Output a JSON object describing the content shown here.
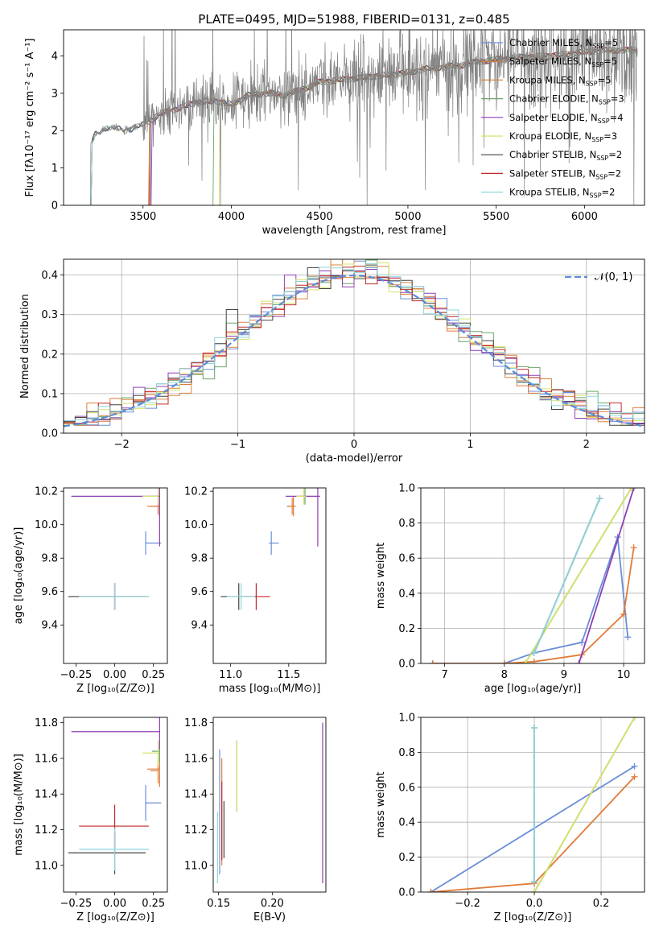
{
  "figure_title": "PLATE=0495, MJD=51988, FIBERID=0131, z=0.485",
  "models": [
    {
      "name": "Chabrier MILES",
      "nssp": "5",
      "color": "#6a8fd8"
    },
    {
      "name": "Salpeter MILES",
      "nssp": "5",
      "color": "#e07b39"
    },
    {
      "name": "Kroupa MILES",
      "nssp": "5",
      "color": "#d9843e"
    },
    {
      "name": "Chabrier ELODIE",
      "nssp": "3",
      "color": "#6da36a"
    },
    {
      "name": "Salpeter ELODIE",
      "nssp": "4",
      "color": "#8e3fb5"
    },
    {
      "name": "Kroupa ELODIE",
      "nssp": "3",
      "color": "#d7e36b"
    },
    {
      "name": "Chabrier STELIB",
      "nssp": "2",
      "color": "#444444"
    },
    {
      "name": "Salpeter STELIB",
      "nssp": "2",
      "color": "#c0282a"
    },
    {
      "name": "Kroupa STELIB",
      "nssp": "2",
      "color": "#8fd6dc"
    }
  ],
  "chart_data": [
    {
      "id": "spectrum",
      "type": "line",
      "title": "PLATE=0495, MJD=51988, FIBERID=0131, z=0.485",
      "xlabel": "wavelength [Angstrom, rest frame]",
      "ylabel": "Flux [fλ10⁻¹⁷ erg cm⁻² s⁻¹ A⁻¹]",
      "xlim": [
        3050,
        6340
      ],
      "ylim": [
        0,
        4.7
      ],
      "xticks": [
        "3500",
        "4000",
        "4500",
        "5000",
        "5500",
        "6000"
      ],
      "yticks": [
        "0",
        "1",
        "2",
        "3",
        "4"
      ],
      "data_start": 3200,
      "continuum": [
        [
          3200,
          1.6
        ],
        [
          3230,
          1.9
        ],
        [
          3300,
          2.1
        ],
        [
          3400,
          2.0
        ],
        [
          3500,
          2.15
        ],
        [
          3600,
          2.45
        ],
        [
          3700,
          2.6
        ],
        [
          3800,
          2.75
        ],
        [
          3900,
          2.8
        ],
        [
          4000,
          2.7
        ],
        [
          4100,
          2.95
        ],
        [
          4200,
          3.0
        ],
        [
          4300,
          2.95
        ],
        [
          4400,
          3.1
        ],
        [
          4500,
          3.3
        ],
        [
          4600,
          3.35
        ],
        [
          4700,
          3.4
        ],
        [
          4800,
          3.45
        ],
        [
          4900,
          3.5
        ],
        [
          5000,
          3.55
        ],
        [
          5100,
          3.65
        ],
        [
          5200,
          3.7
        ],
        [
          5300,
          3.75
        ],
        [
          5400,
          3.85
        ],
        [
          5500,
          3.9
        ],
        [
          5600,
          3.95
        ],
        [
          5700,
          3.98
        ],
        [
          5800,
          4.0
        ],
        [
          5900,
          4.05
        ],
        [
          6000,
          4.1
        ],
        [
          6100,
          4.15
        ],
        [
          6200,
          4.15
        ]
      ],
      "noise_start": 3500,
      "series_start": [
        3200,
        3525,
        3200,
        3890,
        3540,
        3925,
        3200,
        3530,
        3200
      ]
    },
    {
      "id": "residuals",
      "type": "histogram",
      "xlabel": "(data-model)/error",
      "ylabel": "Normed distribution",
      "xlim": [
        -2.5,
        2.5
      ],
      "ylim": [
        0,
        0.44
      ],
      "xticks": [
        "−2",
        "−1",
        "0",
        "1",
        "2"
      ],
      "yticks": [
        "0.0",
        "0.1",
        "0.2",
        "0.3",
        "0.4"
      ],
      "legend": "𝒩(0, 1)",
      "gaussian": {
        "mu": 0,
        "sigma": 1
      }
    },
    {
      "id": "age_vs_Z",
      "type": "scatter",
      "xlabel": "Z [log₁₀(Z/Z⊙)]",
      "ylabel": "age  [log₁₀(age/yr)]",
      "xlim": [
        -0.33,
        0.34
      ],
      "ylim": [
        9.17,
        10.22
      ],
      "xticks": [
        "−0.25",
        "0.00",
        "0.25"
      ],
      "yticks": [
        "9.4",
        "9.6",
        "9.8",
        "10.0",
        "10.2"
      ]
    },
    {
      "id": "age_vs_mass",
      "type": "scatter",
      "xlabel": "mass [log₁₀(M/M⊙)]",
      "ylabel": "",
      "xlim": [
        10.85,
        11.82
      ],
      "ylim": [
        9.17,
        10.22
      ],
      "xticks": [
        "11.0",
        "11.5"
      ],
      "yticks": [
        "9.4",
        "9.6",
        "9.8",
        "10.0",
        "10.2"
      ]
    },
    {
      "id": "weight_vs_age",
      "type": "line",
      "xlabel": "age  [log₁₀(age/yr)]",
      "ylabel": "mass weight",
      "xlim": [
        6.6,
        10.35
      ],
      "ylim": [
        0,
        1.0
      ],
      "xticks": [
        "7",
        "8",
        "9",
        "10"
      ],
      "yticks": [
        "0.0",
        "0.2",
        "0.4",
        "0.6",
        "0.8",
        "1.0"
      ]
    },
    {
      "id": "mass_vs_Z",
      "type": "scatter",
      "xlabel": "Z [log₁₀(Z/Z⊙)]",
      "ylabel": "mass [log₁₀(M/M⊙)]",
      "xlim": [
        -0.33,
        0.34
      ],
      "ylim": [
        10.85,
        11.83
      ],
      "xticks": [
        "−0.25",
        "0.00",
        "0.25"
      ],
      "yticks": [
        "11.0",
        "11.2",
        "11.4",
        "11.6",
        "11.8"
      ]
    },
    {
      "id": "mass_vs_ebv",
      "type": "scatter",
      "xlabel": "E(B-V)",
      "ylabel": "",
      "xlim": [
        0.145,
        0.25
      ],
      "ylim": [
        10.85,
        11.83
      ],
      "xticks": [
        "0.15",
        "0.20"
      ],
      "yticks": [
        "11.0",
        "11.2",
        "11.4",
        "11.6",
        "11.8"
      ]
    },
    {
      "id": "weight_vs_Z",
      "type": "line",
      "xlabel": "Z [log₁₀(Z/Z⊙)]",
      "ylabel": "mass weight",
      "xlim": [
        -0.34,
        0.33
      ],
      "ylim": [
        0,
        1.0
      ],
      "xticks": [
        "−0.2",
        "0.0",
        "0.2"
      ],
      "yticks": [
        "0.0",
        "0.2",
        "0.4",
        "0.6",
        "0.8",
        "1.0"
      ]
    }
  ],
  "points": {
    "age_Z_mass": [
      {
        "model": 0,
        "Z": 0.2,
        "age": 9.89,
        "mass": 11.35,
        "Zerr": [
          0.0,
          0.1
        ],
        "ageerr": 0.07,
        "masserr": 0.1
      },
      {
        "model": 1,
        "Z": 0.29,
        "age": 10.11,
        "mass": 11.54,
        "Zerr": [
          0.08,
          0.0
        ],
        "ageerr": 0.06,
        "masserr": 0.1
      },
      {
        "model": 2,
        "Z": 0.28,
        "age": 10.11,
        "mass": 11.53,
        "Zerr": [
          0.05,
          0.0
        ],
        "ageerr": 0.05,
        "masserr": 0.07
      },
      {
        "model": 3,
        "Z": 0.29,
        "age": 10.17,
        "mass": 11.64,
        "Zerr": [
          0.05,
          0.0
        ],
        "ageerr": 0.05,
        "masserr": 0.06
      },
      {
        "model": 4,
        "Z": 0.29,
        "age": 10.17,
        "mass": 11.75,
        "Zerr": [
          0.57,
          0.0
        ],
        "ageerr": 0.3,
        "masserr": 0.1
      },
      {
        "model": 5,
        "Z": 0.28,
        "age": 10.17,
        "mass": 11.63,
        "Zerr": [
          0.1,
          0.0
        ],
        "ageerr": 0.05,
        "masserr": 0.07
      },
      {
        "model": 6,
        "Z": 0.0,
        "age": 9.57,
        "mass": 11.07,
        "Zerr": [
          0.3,
          0.2
        ],
        "ageerr": 0.08,
        "masserr": 0.12
      },
      {
        "model": 7,
        "Z": 0.0,
        "age": 9.57,
        "mass": 11.22,
        "Zerr": [
          0.23,
          0.22
        ],
        "ageerr": 0.08,
        "masserr": 0.12
      },
      {
        "model": 8,
        "Z": 0.0,
        "age": 9.57,
        "mass": 11.09,
        "Zerr": [
          0.23,
          0.22
        ],
        "ageerr": 0.08,
        "masserr": 0.12
      }
    ],
    "ebv": [
      {
        "model": 0,
        "ebv": 0.151,
        "mass": 11.3,
        "err": 0.35
      },
      {
        "model": 1,
        "ebv": 0.153,
        "mass": 11.3,
        "err": 0.3
      },
      {
        "model": 3,
        "ebv": 0.167,
        "mass": 11.5,
        "err": 0.2
      },
      {
        "model": 4,
        "ebv": 0.247,
        "mass": 11.35,
        "err": 0.45
      },
      {
        "model": 5,
        "ebv": 0.167,
        "mass": 11.5,
        "err": 0.2
      },
      {
        "model": 6,
        "ebv": 0.155,
        "mass": 11.2,
        "err": 0.16
      },
      {
        "model": 7,
        "ebv": 0.153,
        "mass": 11.25,
        "err": 0.22
      },
      {
        "model": 8,
        "ebv": 0.149,
        "mass": 11.1,
        "err": 0.2
      }
    ],
    "weights_age": [
      {
        "model": 0,
        "pts": [
          [
            6.8,
            0.0
          ],
          [
            8.0,
            0.0
          ],
          [
            8.5,
            0.06
          ],
          [
            9.3,
            0.12
          ],
          [
            9.9,
            0.72
          ],
          [
            10.07,
            0.15
          ]
        ]
      },
      {
        "model": 1,
        "pts": [
          [
            6.8,
            0.0
          ],
          [
            8.0,
            0.0
          ],
          [
            8.5,
            0.01
          ],
          [
            9.3,
            0.05
          ],
          [
            10.0,
            0.28
          ],
          [
            10.17,
            0.66
          ]
        ]
      },
      {
        "model": 3,
        "pts": [
          [
            8.35,
            0.0
          ],
          [
            10.13,
            1.0
          ]
        ]
      },
      {
        "model": 4,
        "pts": [
          [
            9.25,
            0.0
          ],
          [
            10.17,
            1.0
          ]
        ]
      },
      {
        "model": 5,
        "pts": [
          [
            8.35,
            0.0
          ],
          [
            10.13,
            1.0
          ]
        ]
      },
      {
        "model": 6,
        "pts": [
          [
            8.5,
            0.06
          ],
          [
            9.6,
            0.94
          ]
        ]
      },
      {
        "model": 8,
        "pts": [
          [
            8.5,
            0.06
          ],
          [
            9.6,
            0.94
          ]
        ]
      }
    ],
    "weights_Z": [
      {
        "model": 0,
        "pts": [
          [
            -0.31,
            0.0
          ],
          [
            0.3,
            0.72
          ]
        ]
      },
      {
        "model": 1,
        "pts": [
          [
            -0.31,
            0.0
          ],
          [
            0.0,
            0.05
          ],
          [
            0.3,
            0.66
          ]
        ]
      },
      {
        "model": 3,
        "pts": [
          [
            0.0,
            0.0
          ],
          [
            0.3,
            1.0
          ]
        ]
      },
      {
        "model": 5,
        "pts": [
          [
            0.0,
            0.0
          ],
          [
            0.3,
            1.0
          ]
        ]
      },
      {
        "model": 6,
        "pts": [
          [
            0.0,
            0.06
          ],
          [
            0.0,
            0.94
          ]
        ]
      },
      {
        "model": 8,
        "pts": [
          [
            0.0,
            0.06
          ],
          [
            0.0,
            0.94
          ]
        ]
      }
    ]
  }
}
